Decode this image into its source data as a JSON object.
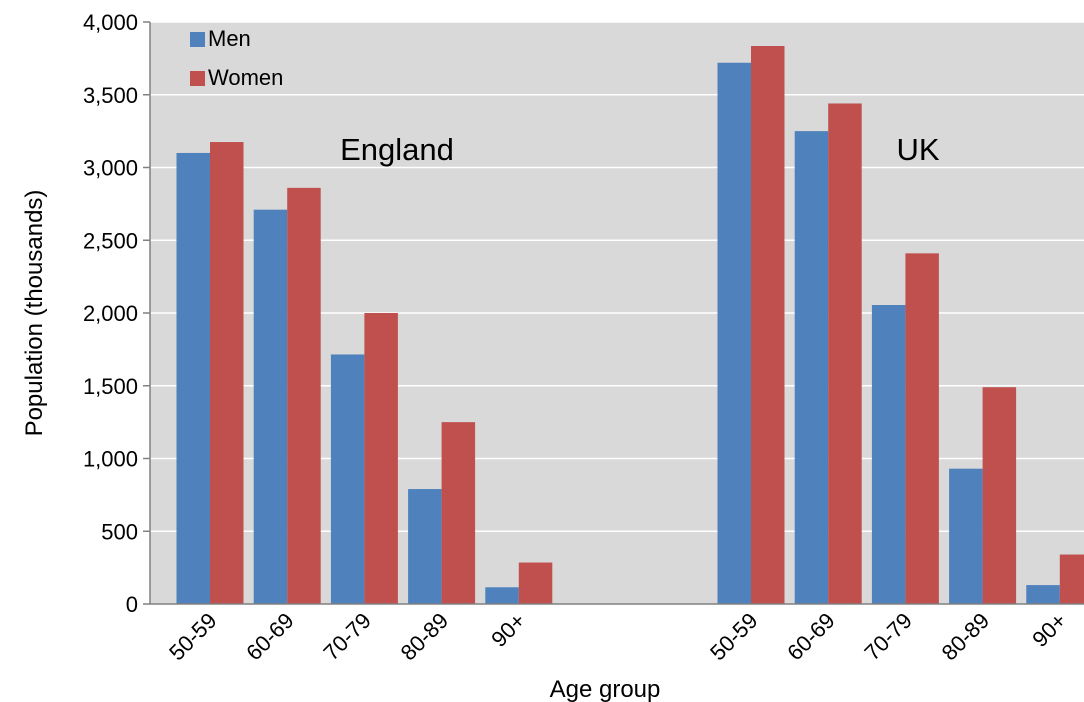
{
  "chart_data": {
    "type": "bar",
    "xlabel": "Age group",
    "ylabel": "Population (thousands)",
    "ylim": [
      0,
      4000
    ],
    "yticks": [
      0,
      500,
      1000,
      1500,
      2000,
      2500,
      3000,
      3500,
      4000
    ],
    "ytick_labels": [
      "0",
      "500",
      "1,000",
      "1,500",
      "2,000",
      "2,500",
      "3,000",
      "3,500",
      "4,000"
    ],
    "grid": true,
    "legend_position": "top-left",
    "groups": [
      {
        "label": "England",
        "categories": [
          "50-59",
          "60-69",
          "70-79",
          "80-89",
          "90+"
        ],
        "series": [
          {
            "name": "Men",
            "values": [
              3100,
              2710,
              1715,
              790,
              115
            ]
          },
          {
            "name": "Women",
            "values": [
              3175,
              2860,
              2000,
              1250,
              285
            ]
          }
        ]
      },
      {
        "label": "UK",
        "categories": [
          "50-59",
          "60-69",
          "70-79",
          "80-89",
          "90+"
        ],
        "series": [
          {
            "name": "Men",
            "values": [
              3720,
              3250,
              2055,
              930,
              130
            ]
          },
          {
            "name": "Women",
            "values": [
              3835,
              3440,
              2410,
              1490,
              340
            ]
          }
        ]
      }
    ],
    "legend": [
      {
        "name": "Men",
        "color": "#4F81BD"
      },
      {
        "name": "Women",
        "color": "#C0504D"
      }
    ],
    "colors": {
      "plot_background": "#D9D9D9",
      "gridline": "#FFFFFF",
      "axis": "#808080"
    }
  }
}
